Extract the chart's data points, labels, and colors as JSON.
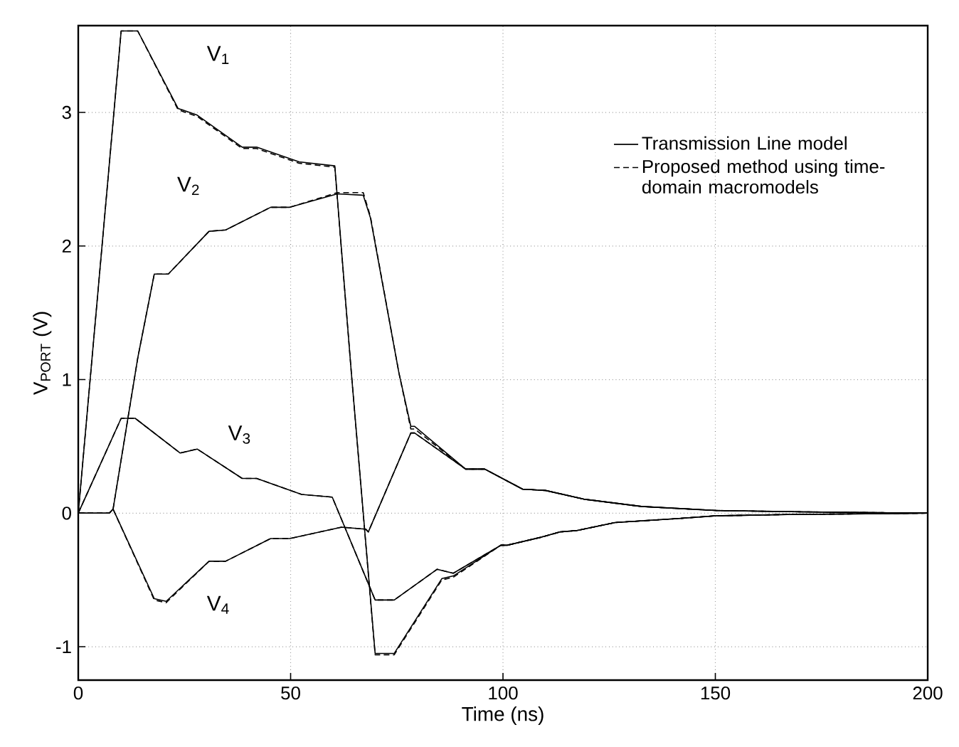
{
  "chart_data": {
    "type": "line",
    "xlabel": "Time (ns)",
    "ylabel": "V$_{PORT}$ (V)",
    "xlim": [
      0,
      200
    ],
    "ylim": [
      -1.25,
      3.65
    ],
    "xticks": [
      0,
      50,
      100,
      150,
      200
    ],
    "yticks": [
      -1,
      0,
      1,
      2,
      3
    ],
    "grid": true,
    "legend": "top right",
    "marker": "none",
    "series": [
      {
        "name": "Transmission Line model",
        "color": "#000000",
        "line_style": "solid",
        "x": [
          0,
          10.1,
          14,
          23.5,
          28,
          38.6,
          42,
          52,
          60.4,
          64.3,
          69.9,
          74.4,
          85.6,
          88.3,
          99.5,
          101,
          109,
          113.5,
          117.4,
          126.4,
          141.5,
          150,
          167,
          200
        ],
        "values": [
          0,
          3.61,
          3.61,
          3.03,
          2.98,
          2.74,
          2.74,
          2.63,
          2.6,
          1.05,
          -1.05,
          -1.05,
          -0.49,
          -0.47,
          -0.24,
          -0.24,
          -0.18,
          -0.14,
          -0.13,
          -0.07,
          -0.04,
          -0.02,
          -0.01,
          0
        ]
      },
      {
        "name": "Proposed method using time-domain macromodels",
        "color": "#000000",
        "line_style": "dashed",
        "x": [
          0,
          10.1,
          14,
          23.5,
          28,
          38.6,
          42,
          52,
          60.4,
          64.3,
          69.9,
          74.4,
          85.6,
          88.3,
          99.5,
          101,
          109,
          113.5,
          117.4,
          126.4,
          141.5,
          150,
          167,
          200
        ],
        "values": [
          0,
          3.61,
          3.61,
          3.02,
          2.97,
          2.73,
          2.73,
          2.62,
          2.59,
          1.05,
          -1.06,
          -1.06,
          -0.5,
          -0.48,
          -0.24,
          -0.24,
          -0.18,
          -0.14,
          -0.13,
          -0.07,
          -0.04,
          -0.02,
          -0.01,
          0
        ]
      },
      {
        "color": "#000000",
        "line_style": "solid",
        "x": [
          0,
          7.3,
          8.2,
          14,
          17.9,
          21.2,
          30.8,
          34.7,
          45.3,
          49.8,
          61,
          67.1,
          68.8,
          75.5,
          78.3,
          79.2,
          91.2,
          95.7,
          104.6,
          110,
          119,
          132.6,
          150,
          170.5,
          200
        ],
        "values": [
          0,
          0,
          0.03,
          1.16,
          1.79,
          1.79,
          2.11,
          2.12,
          2.29,
          2.29,
          2.39,
          2.38,
          2.21,
          1.05,
          0.65,
          0.65,
          0.33,
          0.33,
          0.18,
          0.17,
          0.105,
          0.05,
          0.02,
          0.01,
          0
        ]
      },
      {
        "color": "#000000",
        "line_style": "dashed",
        "x": [
          0,
          7.3,
          8.2,
          14,
          17.9,
          21.2,
          30.8,
          34.7,
          45.3,
          49.8,
          61,
          67.1,
          68.8,
          75.5,
          78.3,
          79.2,
          91.2,
          95.7,
          104.6,
          110,
          119,
          132.6,
          150,
          170.5,
          200
        ],
        "values": [
          0,
          0,
          0.03,
          1.16,
          1.79,
          1.79,
          2.11,
          2.12,
          2.29,
          2.29,
          2.4,
          2.4,
          2.22,
          1.05,
          0.63,
          0.63,
          0.33,
          0.33,
          0.18,
          0.17,
          0.105,
          0.05,
          0.02,
          0.01,
          0
        ]
      },
      {
        "color": "#000000",
        "line_style": "solid",
        "x": [
          0,
          10.1,
          13.4,
          24,
          28,
          38.6,
          42,
          52.6,
          59.8,
          69.9,
          74.4,
          84.5,
          88.3,
          99.5,
          101,
          109,
          113.5,
          117.4,
          126.4,
          141.5,
          150,
          167,
          200
        ],
        "values": [
          0,
          0.71,
          0.71,
          0.45,
          0.48,
          0.26,
          0.26,
          0.14,
          0.12,
          -0.65,
          -0.65,
          -0.42,
          -0.45,
          -0.24,
          -0.24,
          -0.18,
          -0.14,
          -0.13,
          -0.07,
          -0.04,
          -0.02,
          -0.01,
          0
        ]
      },
      {
        "color": "#000000",
        "line_style": "dashed",
        "x": [
          0,
          10.1,
          13.4,
          24,
          28,
          38.6,
          42,
          52.6,
          59.8,
          69.9,
          74.4,
          84.5,
          88.3,
          99.5,
          101,
          109,
          113.5,
          117.4,
          126.4,
          141.5,
          150,
          167,
          200
        ],
        "values": [
          0,
          0.71,
          0.71,
          0.45,
          0.48,
          0.26,
          0.26,
          0.14,
          0.12,
          -0.65,
          -0.65,
          -0.42,
          -0.45,
          -0.24,
          -0.24,
          -0.18,
          -0.14,
          -0.13,
          -0.07,
          -0.04,
          -0.02,
          -0.01,
          0
        ]
      },
      {
        "color": "#000000",
        "line_style": "solid",
        "x": [
          0,
          7.3,
          8.2,
          17.9,
          20.7,
          30.8,
          34.7,
          45.3,
          49.8,
          62,
          67.7,
          68.3,
          78.3,
          79.2,
          91.2,
          95.7,
          104.6,
          110,
          119,
          132.6,
          150,
          170.5,
          200
        ],
        "values": [
          0,
          0,
          0.03,
          -0.64,
          -0.66,
          -0.36,
          -0.36,
          -0.19,
          -0.19,
          -0.105,
          -0.12,
          -0.14,
          0.6,
          0.6,
          0.33,
          0.33,
          0.18,
          0.17,
          0.105,
          0.05,
          0.02,
          0.01,
          0
        ]
      },
      {
        "color": "#000000",
        "line_style": "dashed",
        "x": [
          0,
          7.3,
          8.2,
          17.9,
          20.7,
          30.8,
          34.7,
          45.3,
          49.8,
          62,
          67.7,
          68.3,
          78.3,
          79.2,
          91.2,
          95.7,
          104.6,
          110,
          119,
          132.6,
          150,
          170.5,
          200
        ],
        "values": [
          0,
          0,
          0.03,
          -0.65,
          -0.67,
          -0.36,
          -0.36,
          -0.19,
          -0.19,
          -0.105,
          -0.12,
          -0.14,
          0.6,
          0.6,
          0.33,
          0.33,
          0.18,
          0.17,
          0.105,
          0.05,
          0.02,
          0.01,
          0
        ]
      }
    ],
    "annotations": [
      "V$_{1}$",
      "V$_{2}$",
      "V$_{3}$",
      "V$_{4}$"
    ]
  }
}
